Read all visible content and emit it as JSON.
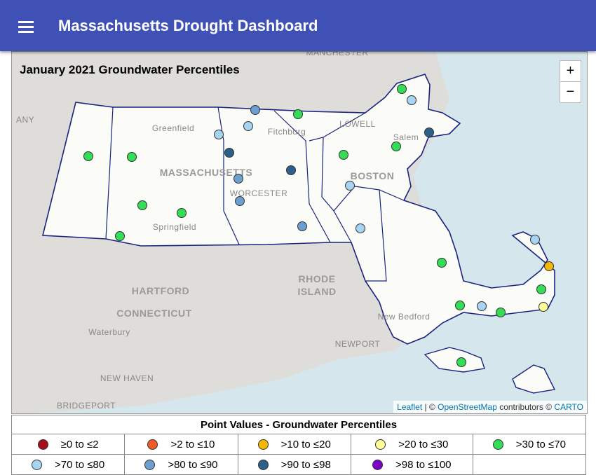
{
  "header": {
    "title": "Massachusetts Drought Dashboard"
  },
  "map": {
    "title": "January 2021 Groundwater Percentiles",
    "zoom_in": "+",
    "zoom_out": "−",
    "attribution": {
      "leaflet": "Leaflet",
      "osm": "OpenStreetMap",
      "carto": "CARTO",
      "sep": " | © ",
      "mid": " contributors © "
    },
    "places": [
      "MANCHESTER",
      "Greenfield",
      "Fitchburg",
      "LOWELL",
      "Salem",
      "MASSACHUSETTS",
      "BOSTON",
      "WORCESTER",
      "Springfield",
      "HARTFORD",
      "RHODE",
      "ISLAND",
      "CONNECTICUT",
      "Waterbury",
      "New Bedford",
      "NEWPORT",
      "NEW HAVEN",
      "BRIDGEPORT",
      "ANY"
    ]
  },
  "legend": {
    "title": "Point Values - Groundwater Percentiles",
    "items": [
      {
        "label": "≥0 to ≤2",
        "color": "#a50f15"
      },
      {
        "label": ">2 to ≤10",
        "color": "#f05a28"
      },
      {
        "label": ">10 to ≤20",
        "color": "#f5b800"
      },
      {
        "label": ">20 to ≤30",
        "color": "#ffff99"
      },
      {
        "label": ">30 to ≤70",
        "color": "#33dd55"
      },
      {
        "label": ">70 to ≤80",
        "color": "#a6d4f2"
      },
      {
        "label": ">80 to ≤90",
        "color": "#6a9fcf"
      },
      {
        "label": ">90 to ≤98",
        "color": "#2c5f8a"
      },
      {
        "label": ">98 to ≤100",
        "color": "#7b00c8"
      }
    ]
  }
}
